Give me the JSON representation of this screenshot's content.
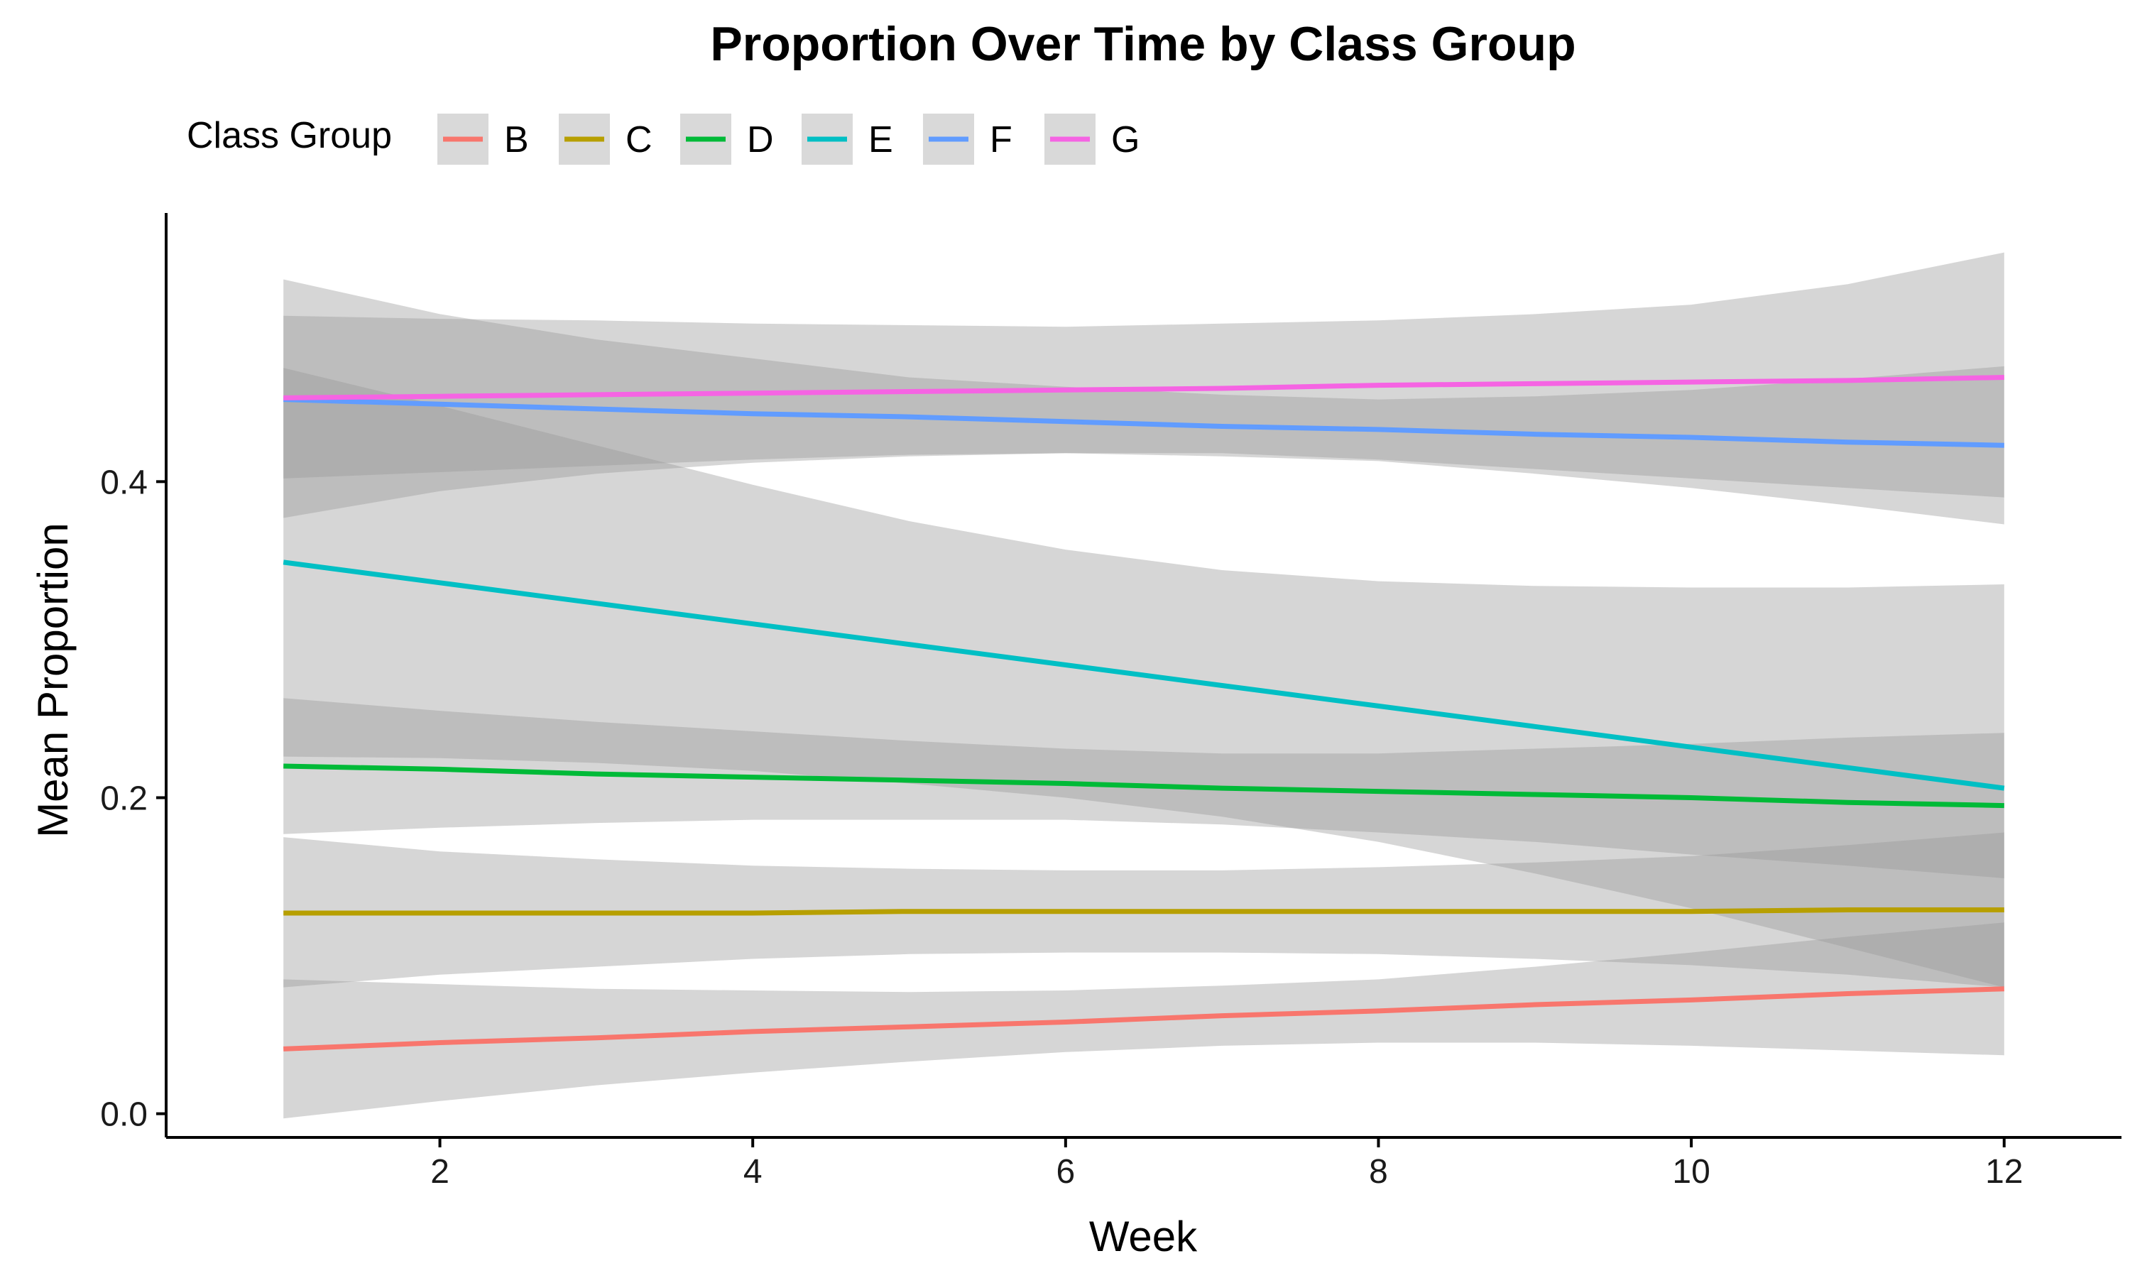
{
  "chart_data": {
    "type": "line",
    "title": "Proportion Over Time by Class Group",
    "xlabel": "Week",
    "ylabel": "Mean Proportion",
    "xlim": [
      0.25,
      12.75
    ],
    "ylim": [
      -0.015,
      0.57
    ],
    "x_ticks": [
      2,
      4,
      6,
      8,
      10,
      12
    ],
    "y_ticks": [
      0.0,
      0.2,
      0.4
    ],
    "y_tick_labels": [
      "0.0",
      "0.2",
      "0.4"
    ],
    "grid": false,
    "legend": {
      "title": "Class Group",
      "placement": "top"
    },
    "band_color": "#999999",
    "series": [
      {
        "name": "B",
        "color": "#F8766D",
        "x": [
          1,
          2,
          3,
          4,
          5,
          6,
          7,
          8,
          9,
          10,
          11,
          12
        ],
        "y": [
          0.041,
          0.045,
          0.048,
          0.052,
          0.055,
          0.058,
          0.062,
          0.065,
          0.069,
          0.072,
          0.076,
          0.079
        ],
        "lower": [
          -0.003,
          0.008,
          0.018,
          0.026,
          0.033,
          0.039,
          0.043,
          0.045,
          0.045,
          0.043,
          0.04,
          0.037
        ],
        "upper": [
          0.085,
          0.082,
          0.079,
          0.078,
          0.077,
          0.078,
          0.081,
          0.085,
          0.093,
          0.102,
          0.112,
          0.121
        ]
      },
      {
        "name": "C",
        "color": "#B79F00",
        "x": [
          1,
          2,
          3,
          4,
          5,
          6,
          7,
          8,
          9,
          10,
          11,
          12
        ],
        "y": [
          0.127,
          0.127,
          0.127,
          0.127,
          0.128,
          0.128,
          0.128,
          0.128,
          0.128,
          0.128,
          0.129,
          0.129
        ],
        "lower": [
          0.08,
          0.088,
          0.093,
          0.098,
          0.101,
          0.102,
          0.102,
          0.101,
          0.098,
          0.094,
          0.088,
          0.08
        ],
        "upper": [
          0.175,
          0.166,
          0.161,
          0.157,
          0.155,
          0.154,
          0.154,
          0.156,
          0.159,
          0.163,
          0.17,
          0.178
        ]
      },
      {
        "name": "D",
        "color": "#00BA38",
        "x": [
          1,
          2,
          3,
          4,
          5,
          6,
          7,
          8,
          9,
          10,
          11,
          12
        ],
        "y": [
          0.22,
          0.218,
          0.215,
          0.213,
          0.211,
          0.209,
          0.206,
          0.204,
          0.202,
          0.2,
          0.197,
          0.195
        ],
        "lower": [
          0.177,
          0.181,
          0.184,
          0.186,
          0.186,
          0.186,
          0.183,
          0.178,
          0.172,
          0.164,
          0.157,
          0.149
        ],
        "upper": [
          0.263,
          0.255,
          0.248,
          0.242,
          0.236,
          0.231,
          0.228,
          0.228,
          0.231,
          0.234,
          0.238,
          0.241
        ]
      },
      {
        "name": "E",
        "color": "#00BFC4",
        "x": [
          1,
          2,
          3,
          4,
          5,
          6,
          7,
          8,
          9,
          10,
          11,
          12
        ],
        "y": [
          0.349,
          0.336,
          0.323,
          0.31,
          0.297,
          0.284,
          0.271,
          0.258,
          0.245,
          0.232,
          0.219,
          0.206
        ],
        "lower": [
          0.226,
          0.225,
          0.222,
          0.217,
          0.209,
          0.2,
          0.188,
          0.172,
          0.152,
          0.13,
          0.105,
          0.08
        ],
        "upper": [
          0.472,
          0.448,
          0.423,
          0.398,
          0.375,
          0.357,
          0.344,
          0.337,
          0.334,
          0.333,
          0.333,
          0.335
        ]
      },
      {
        "name": "F",
        "color": "#619CFF",
        "x": [
          1,
          2,
          3,
          4,
          5,
          6,
          7,
          8,
          9,
          10,
          11,
          12
        ],
        "y": [
          0.452,
          0.449,
          0.446,
          0.443,
          0.441,
          0.438,
          0.435,
          0.433,
          0.43,
          0.428,
          0.425,
          0.423
        ],
        "lower": [
          0.377,
          0.394,
          0.405,
          0.412,
          0.416,
          0.418,
          0.416,
          0.413,
          0.405,
          0.396,
          0.385,
          0.373
        ],
        "upper": [
          0.528,
          0.506,
          0.49,
          0.478,
          0.466,
          0.46,
          0.455,
          0.452,
          0.454,
          0.458,
          0.465,
          0.473
        ]
      },
      {
        "name": "G",
        "color": "#F564E3",
        "x": [
          1,
          2,
          3,
          4,
          5,
          6,
          7,
          8,
          9,
          10,
          11,
          12
        ],
        "y": [
          0.453,
          0.454,
          0.455,
          0.456,
          0.457,
          0.458,
          0.459,
          0.461,
          0.462,
          0.463,
          0.464,
          0.466
        ],
        "lower": [
          0.402,
          0.406,
          0.41,
          0.414,
          0.417,
          0.418,
          0.418,
          0.414,
          0.408,
          0.402,
          0.396,
          0.39
        ],
        "upper": [
          0.505,
          0.503,
          0.502,
          0.5,
          0.499,
          0.498,
          0.5,
          0.502,
          0.506,
          0.512,
          0.525,
          0.545
        ]
      }
    ]
  }
}
